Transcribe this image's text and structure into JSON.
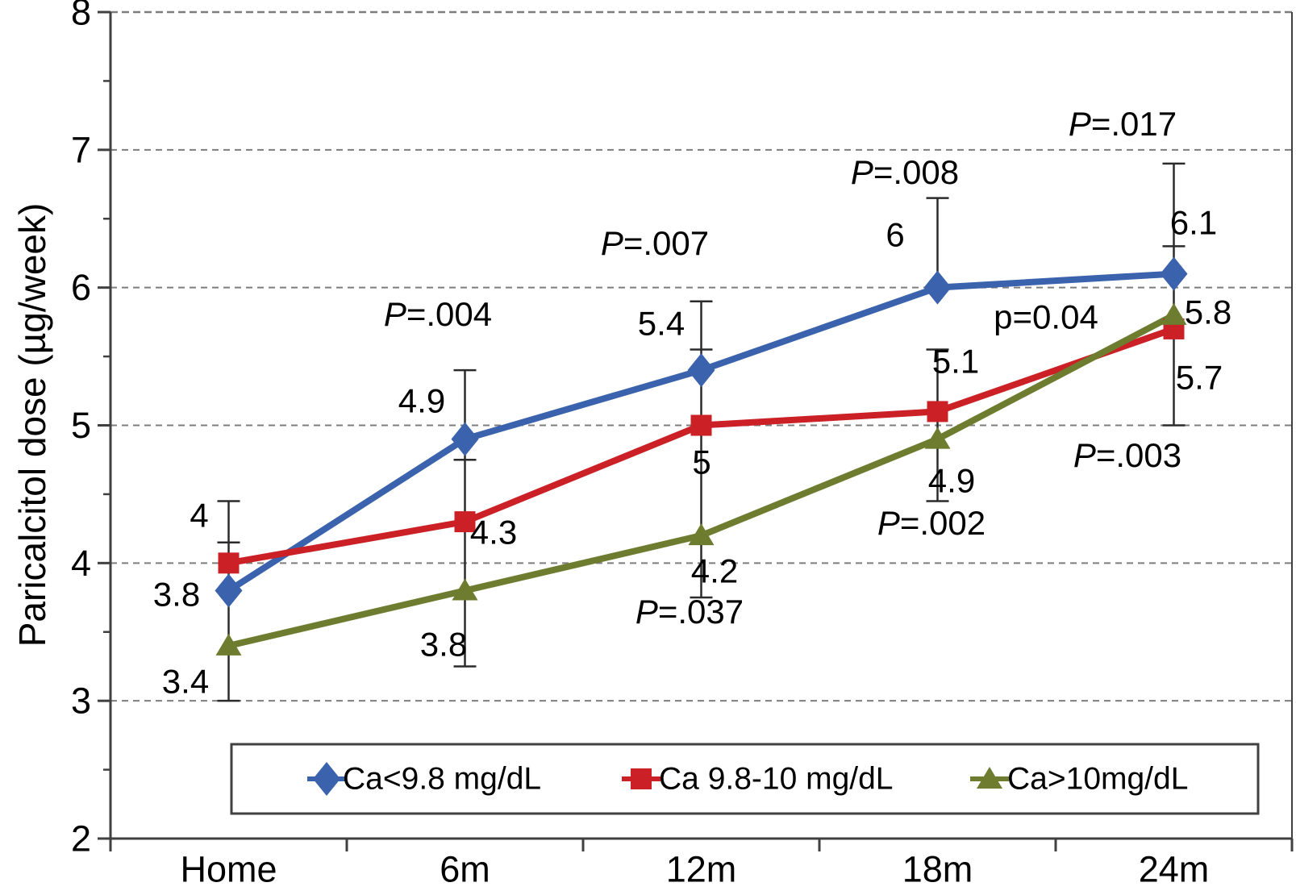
{
  "figure": {
    "background": "#ffffff",
    "axis_color": "#404040",
    "grid_color": "#7d7d7d",
    "error_bar_color": "#2b2b2b"
  },
  "chart_data": {
    "type": "line",
    "title": "",
    "xlabel": "",
    "ylabel": "Paricalcitol dose (µg/week)",
    "categories": [
      "Home",
      "6m",
      "12m",
      "18m",
      "24m"
    ],
    "ylim": [
      2,
      8
    ],
    "yticks_major": [
      2,
      3,
      4,
      5,
      6,
      7,
      8
    ],
    "yticks_minor": [
      2.5,
      3.5,
      4.5,
      5.5,
      6.5,
      7.5
    ],
    "grid": {
      "horizontal_dashed_at": [
        3,
        4,
        5,
        6,
        7,
        8
      ],
      "style": "dashed"
    },
    "legend": {
      "position": "bottom",
      "border": true,
      "entries": [
        "Ca<9.8 mg/dL",
        "Ca 9.8-10 mg/dL",
        "Ca>10mg/dL"
      ]
    },
    "series": [
      {
        "name": "Ca<9.8 mg/dL",
        "marker": "diamond",
        "color": "#3A62AD",
        "values": [
          3.8,
          4.9,
          5.4,
          6,
          6.1
        ],
        "point_labels": [
          "3.8",
          "4.9",
          "5.4",
          "6",
          "6.1"
        ]
      },
      {
        "name": "Ca 9.8-10 mg/dL",
        "marker": "square",
        "color": "#CB2026",
        "values": [
          4,
          4.3,
          5,
          5.1,
          5.7
        ],
        "point_labels": [
          "4",
          "4.3",
          "5",
          "5.1",
          "5.7"
        ]
      },
      {
        "name": "Ca>10mg/dL",
        "marker": "triangle",
        "color": "#6D7C2E",
        "values": [
          3.4,
          3.8,
          4.2,
          4.9,
          5.8
        ],
        "point_labels": [
          "3.4",
          "3.8",
          "4.2",
          "4.9",
          "5.8"
        ]
      }
    ],
    "error_bars": [
      {
        "category_index": 0,
        "line": [
          3.0,
          4.45
        ],
        "caps": [
          4.45,
          4.15,
          3.0
        ]
      },
      {
        "category_index": 1,
        "line": [
          3.25,
          5.4
        ],
        "caps": [
          5.4,
          4.75,
          3.25
        ]
      },
      {
        "category_index": 2,
        "line": [
          3.75,
          5.9
        ],
        "caps": [
          5.9,
          5.55,
          3.75
        ]
      },
      {
        "category_index": 3,
        "line": [
          6.0,
          6.65
        ],
        "caps": [
          6.65
        ]
      },
      {
        "category_index": 3,
        "line": [
          4.45,
          5.55
        ],
        "caps": [
          5.55,
          4.45
        ]
      },
      {
        "category_index": 4,
        "line": [
          5.0,
          6.9
        ],
        "caps": [
          6.9,
          6.3,
          5.0
        ]
      }
    ],
    "p_value_annotations": [
      {
        "text": "P=.004"
      },
      {
        "text": "P=.007"
      },
      {
        "text": "P=.008"
      },
      {
        "text": "P=.017"
      },
      {
        "text": "p=0.04"
      },
      {
        "text": "P=.003"
      },
      {
        "text": "P=.002"
      },
      {
        "text": "P=.037"
      }
    ]
  }
}
